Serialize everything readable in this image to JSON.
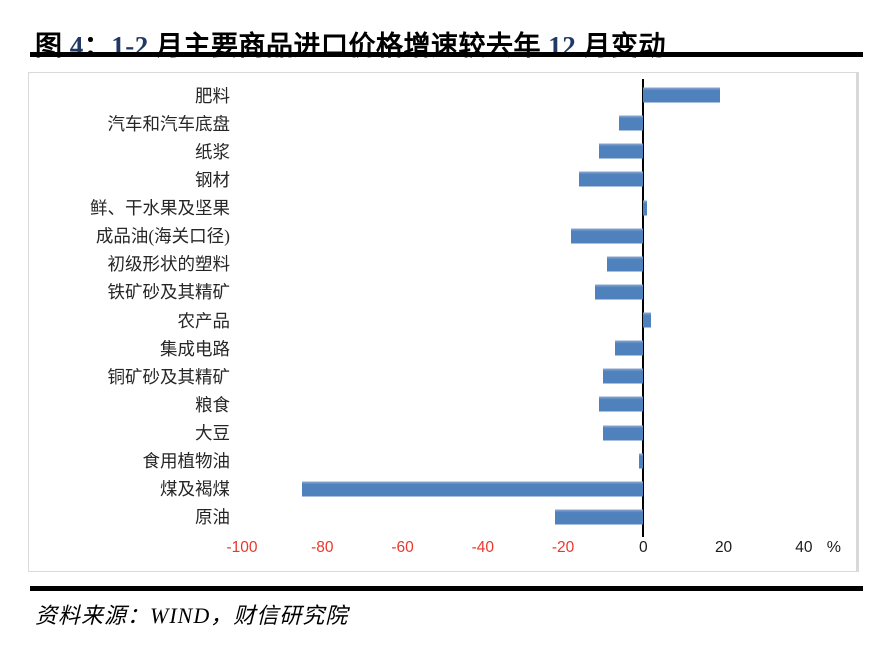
{
  "figure": {
    "title_full": "图 4：1-2 月主要商品进口价格增速较去年 12 月变动",
    "title_segments": [
      {
        "text": "图 ",
        "style": "cjk"
      },
      {
        "text": "4",
        "style": "num"
      },
      {
        "text": "：",
        "style": "cjk"
      },
      {
        "text": "1-2",
        "style": "num"
      },
      {
        "text": " 月主要商品进口价格增速较去年 ",
        "style": "cjk"
      },
      {
        "text": "12",
        "style": "num"
      },
      {
        "text": " 月变动",
        "style": "cjk"
      }
    ],
    "number_color": "#1F3864",
    "text_color": "#000000"
  },
  "chart_data": {
    "type": "bar",
    "orientation": "horizontal",
    "title": "",
    "categories": [
      "肥料",
      "汽车和汽车底盘",
      "纸浆",
      "钢材",
      "鲜、干水果及坚果",
      "成品油(海关口径)",
      "初级形状的塑料",
      "铁矿砂及其精矿",
      "农产品",
      "集成电路",
      "铜矿砂及其精矿",
      "粮食",
      "大豆",
      "食用植物油",
      "煤及褐煤",
      "原油"
    ],
    "values": [
      19,
      -6,
      -11,
      -16,
      1,
      -18,
      -9,
      -12,
      2,
      -7,
      -10,
      -11,
      -10,
      -1,
      -85,
      -22
    ],
    "xticks": [
      -100,
      -80,
      -60,
      -40,
      -20,
      0,
      20,
      40
    ],
    "x_unit": "%",
    "xlim": [
      -101,
      53
    ],
    "grid": false,
    "legend": false,
    "bar_color": "#4F81BD",
    "bar_highlight": "#8FAAD0",
    "tick_color_negative": "#E8382D",
    "tick_color_nonnegative": "#1A1A1A",
    "axis_line_color": "#000000"
  },
  "source": {
    "text": "资料来源：WIND，财信研究院"
  }
}
